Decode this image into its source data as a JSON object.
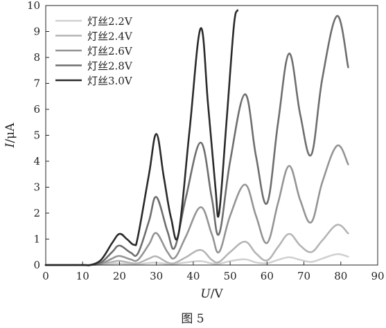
{
  "chart_data": {
    "type": "line",
    "title": "",
    "caption": "图 5",
    "xlabel_var": "U",
    "xlabel_unit": "/V",
    "ylabel_var": "I",
    "ylabel_unit": "/μA",
    "xlim": [
      0,
      90
    ],
    "ylim": [
      0,
      10
    ],
    "xticks": [
      0,
      10,
      20,
      30,
      40,
      50,
      60,
      70,
      80,
      90
    ],
    "yticks": [
      0,
      1,
      2,
      3,
      4,
      5,
      6,
      7,
      8,
      9,
      10
    ],
    "grid": false,
    "legend_position": "top-left",
    "series": [
      {
        "name": "灯丝2.2V",
        "color": "#d0d0d0",
        "x": [
          0,
          10,
          12,
          15,
          18,
          20,
          23,
          25,
          28,
          30,
          33,
          35,
          38,
          42,
          45,
          47,
          50,
          54,
          57,
          60,
          63,
          66,
          69,
          72,
          75,
          79,
          82
        ],
        "y": [
          0,
          0,
          0,
          0.02,
          0.05,
          0.06,
          0.03,
          0.03,
          0.08,
          0.09,
          0.04,
          0.04,
          0.1,
          0.15,
          0.06,
          0.05,
          0.15,
          0.22,
          0.1,
          0.07,
          0.2,
          0.3,
          0.2,
          0.12,
          0.25,
          0.42,
          0.32
        ]
      },
      {
        "name": "灯丝2.4V",
        "color": "#b4b4b4",
        "x": [
          0,
          10,
          12,
          15,
          18,
          20,
          23,
          25,
          28,
          30,
          33,
          35,
          38,
          42,
          45,
          47,
          50,
          54,
          57,
          60,
          63,
          66,
          69,
          72,
          75,
          79,
          82
        ],
        "y": [
          0,
          0,
          0,
          0.04,
          0.12,
          0.16,
          0.08,
          0.07,
          0.25,
          0.33,
          0.1,
          0.08,
          0.3,
          0.58,
          0.2,
          0.12,
          0.5,
          0.9,
          0.45,
          0.18,
          0.7,
          1.2,
          0.75,
          0.5,
          0.95,
          1.55,
          1.22
        ]
      },
      {
        "name": "灯丝2.6V",
        "color": "#949494",
        "x": [
          0,
          10,
          12,
          15,
          18,
          20,
          23,
          25,
          28,
          30,
          33,
          35,
          38,
          42,
          45,
          47,
          50,
          54,
          57,
          60,
          63,
          66,
          69,
          72,
          75,
          79,
          82
        ],
        "y": [
          0,
          0,
          0,
          0.05,
          0.25,
          0.35,
          0.22,
          0.2,
          0.8,
          1.23,
          0.5,
          0.28,
          1.1,
          2.23,
          1.2,
          0.5,
          1.9,
          3.1,
          1.9,
          0.85,
          2.4,
          3.82,
          2.5,
          1.65,
          3.2,
          4.6,
          3.88
        ]
      },
      {
        "name": "灯丝2.8V",
        "color": "#6e6e6e",
        "x": [
          0,
          10,
          12,
          15,
          18,
          20,
          23,
          25,
          28,
          30,
          33,
          35,
          38,
          42,
          45,
          47,
          50,
          54,
          57,
          60,
          63,
          66,
          69,
          72,
          75,
          79,
          82
        ],
        "y": [
          0,
          0,
          0,
          0.1,
          0.5,
          0.75,
          0.48,
          0.45,
          1.7,
          2.62,
          1.3,
          0.68,
          2.6,
          4.72,
          2.6,
          1.2,
          4.0,
          6.58,
          4.2,
          2.38,
          5.5,
          8.15,
          5.8,
          4.25,
          7.2,
          9.6,
          7.62
        ]
      },
      {
        "name": "灯丝3.0V",
        "color": "#2a2a2a",
        "x": [
          0,
          10,
          12,
          15,
          18,
          20,
          22,
          24,
          25,
          28,
          30,
          32,
          34,
          36,
          39,
          42,
          44,
          46,
          47,
          49,
          51,
          52
        ],
        "y": [
          0,
          0,
          0,
          0.2,
          0.85,
          1.2,
          1.0,
          0.78,
          1.1,
          3.5,
          5.05,
          3.4,
          1.8,
          1.2,
          5.2,
          9.12,
          6.2,
          3.0,
          2.0,
          5.5,
          9.2,
          9.82
        ]
      }
    ]
  }
}
